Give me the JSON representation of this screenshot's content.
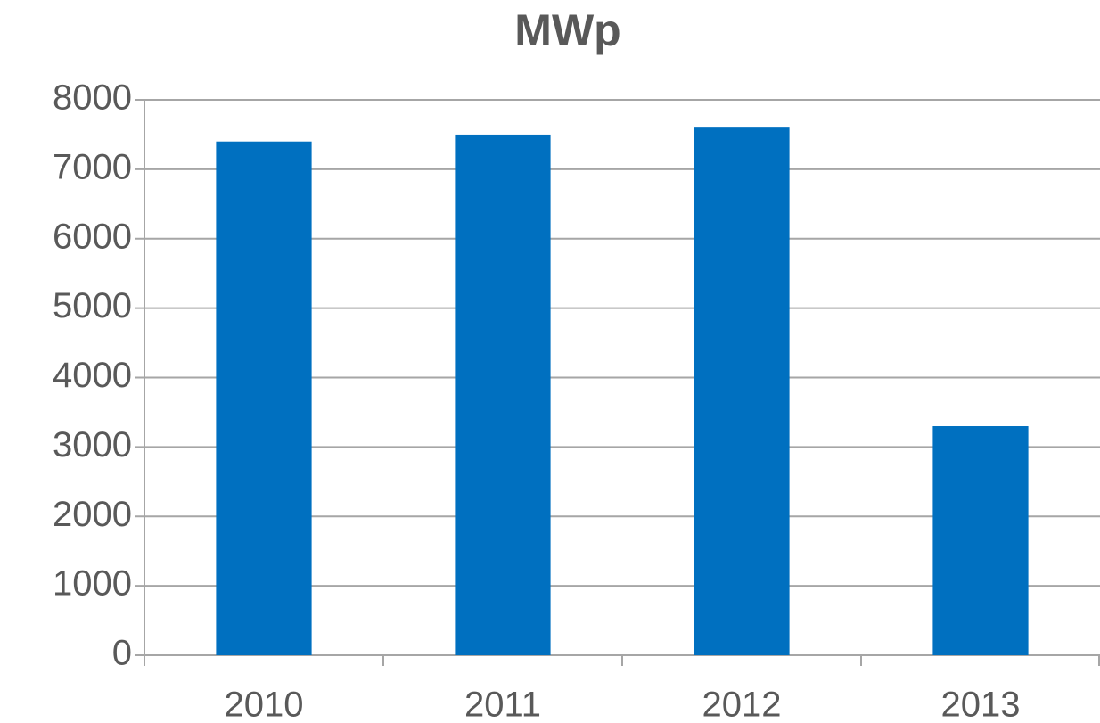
{
  "chart_data": {
    "type": "bar",
    "title": "MWp",
    "categories": [
      "2010",
      "2011",
      "2012",
      "2013"
    ],
    "values": [
      7400,
      7500,
      7600,
      3300
    ],
    "color": "#0070c0",
    "ylim": [
      0,
      8000
    ],
    "yticks": [
      0,
      1000,
      2000,
      3000,
      4000,
      5000,
      6000,
      7000,
      8000
    ],
    "grid": true
  }
}
